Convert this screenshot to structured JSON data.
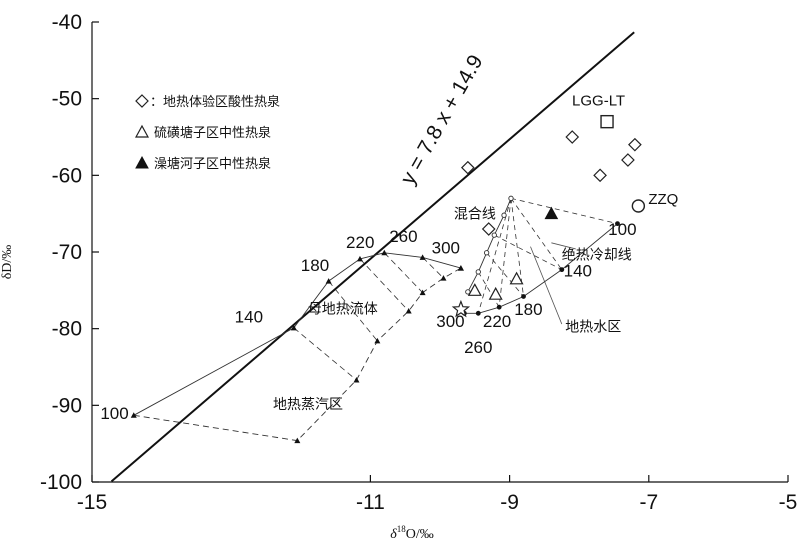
{
  "chart_data": {
    "type": "scatter",
    "xlabel": "δ18O/‰",
    "ylabel": "δD/‰",
    "xlim": [
      -15,
      -5
    ],
    "ylim": [
      -100,
      -40
    ],
    "xticks": [
      -15,
      -11,
      -9,
      -7,
      -5
    ],
    "yticks": [
      -40,
      -50,
      -60,
      -70,
      -80,
      -90,
      -100
    ],
    "grid": false,
    "legend_position": "top-left",
    "legend": [
      {
        "marker": "diamond",
        "label": "：地热体验区酸性热泉"
      },
      {
        "marker": "triangle-open",
        "label": "硫磺塘子区中性热泉"
      },
      {
        "marker": "triangle-filled",
        "label": "澡塘河子区中性热泉"
      }
    ],
    "meteoric_line": {
      "label": "y = 7.8 x + 14.9",
      "slope": 7.8,
      "intercept": 14.9,
      "x_range": [
        -14.72,
        -7.21
      ]
    },
    "series": [
      {
        "name": "地热体验区酸性热泉",
        "marker": "diamond",
        "points": [
          [
            -9.6,
            -59
          ],
          [
            -9.3,
            -67
          ],
          [
            -8.1,
            -55
          ],
          [
            -7.7,
            -60
          ],
          [
            -7.3,
            -58
          ],
          [
            -7.2,
            -56
          ]
        ]
      },
      {
        "name": "硫磺塘子区中性热泉",
        "marker": "triangle-open",
        "points": [
          [
            -9.5,
            -75
          ],
          [
            -9.2,
            -75.5
          ],
          [
            -8.9,
            -73.5
          ]
        ]
      },
      {
        "name": "澡塘河子区中性热泉",
        "marker": "triangle-filled",
        "points": [
          [
            -8.4,
            -65
          ]
        ]
      }
    ],
    "special_points": [
      {
        "label": "LGG-LT",
        "marker": "square",
        "x": -7.6,
        "y": -53
      },
      {
        "label": "ZZQ",
        "marker": "circle",
        "x": -7.15,
        "y": -64
      },
      {
        "label": "",
        "marker": "star",
        "x": -9.7,
        "y": -77.5
      }
    ],
    "geothermal_water_curve": {
      "points": [
        [
          -9.65,
          -78
        ],
        [
          -9.45,
          -78
        ],
        [
          -9.15,
          -77.2
        ],
        [
          -8.8,
          -75.8
        ],
        [
          -8.25,
          -72.3
        ],
        [
          -7.45,
          -66.3
        ]
      ],
      "temperature_labels": [
        {
          "label": "300",
          "x": -9.85,
          "y": -79.8
        },
        {
          "label": "260",
          "x": -9.45,
          "y": -83.2
        },
        {
          "label": "220",
          "x": -9.18,
          "y": -79.8
        },
        {
          "label": "180",
          "x": -8.73,
          "y": -78.2
        },
        {
          "label": "140",
          "x": -8.02,
          "y": -73.2
        },
        {
          "label": "100",
          "x": -7.38,
          "y": -67.8
        }
      ]
    },
    "mixing_curve": {
      "points": [
        [
          -9.6,
          -75.2
        ],
        [
          -9.45,
          -72.6
        ],
        [
          -9.33,
          -70.1
        ],
        [
          -9.22,
          -67.8
        ],
        [
          -9.08,
          -65.2
        ],
        [
          -8.98,
          -63
        ]
      ]
    },
    "steam_curve": {
      "points": [
        [
          -14.4,
          -91.3
        ],
        [
          -12.05,
          -94.6
        ],
        [
          -11.2,
          -86.7
        ],
        [
          -10.9,
          -81.6
        ],
        [
          -10.45,
          -77.7
        ],
        [
          -10.25,
          -75.3
        ],
        [
          -9.95,
          -73.4
        ],
        [
          -9.7,
          -72.1
        ]
      ]
    },
    "parent_fluid_curve": {
      "points": [
        [
          -14.4,
          -91.3
        ],
        [
          -12.1,
          -79.9
        ],
        [
          -11.6,
          -73.8
        ],
        [
          -11.15,
          -70.9
        ],
        [
          -10.8,
          -70.1
        ],
        [
          -10.25,
          -70.7
        ],
        [
          -9.7,
          -72.1
        ]
      ],
      "temperature_labels": [
        {
          "label": "100",
          "x": -14.88,
          "y": -91.8
        },
        {
          "label": "140",
          "x": -12.95,
          "y": -79.2
        },
        {
          "label": "180",
          "x": -12.0,
          "y": -72.5
        },
        {
          "label": "220",
          "x": -11.35,
          "y": -69.5
        },
        {
          "label": "260",
          "x": -10.73,
          "y": -68.7
        },
        {
          "label": "300",
          "x": -10.12,
          "y": -70.2
        }
      ]
    },
    "annotations": [
      {
        "text": "母地热流体",
        "x": -11.9,
        "y": -78
      },
      {
        "text": "地热蒸汽区",
        "x": -12.4,
        "y": -90.5
      },
      {
        "text": "混合线",
        "x": -9.8,
        "y": -65.6
      },
      {
        "text": "绝热冷却线",
        "x": -8.25,
        "y": -71
      },
      {
        "text": "地热水区",
        "x": -8.2,
        "y": -80.4
      }
    ]
  }
}
